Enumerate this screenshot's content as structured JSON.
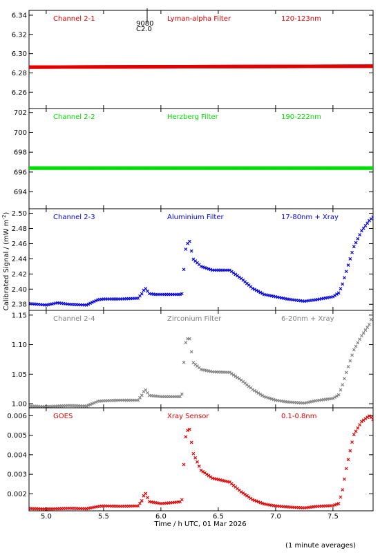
{
  "footer": {
    "note": "(1 minute averages)"
  },
  "axis": {
    "xlabel": "Time / h UTC, 01 Mar 2026",
    "ylabel": "Calibrated Signal / (mW m",
    "ylabel_sup": "-2",
    "ylabel_close": ")",
    "xlim": [
      4.85,
      7.85
    ],
    "xticks": [
      5.0,
      5.5,
      6.0,
      6.5,
      7.0,
      7.5
    ],
    "xtick_labels": [
      "5.0",
      "5.5",
      "6.0",
      "6.5",
      "7.0",
      "7.5"
    ]
  },
  "marker": {
    "x": 5.88,
    "label_top": "9080",
    "label_bottom": "C2.0"
  },
  "chart_data": [
    {
      "type": "scatter",
      "name": "Channel 2-1",
      "filter": "Lyman-alpha Filter",
      "range": "120-123nm",
      "color": "#e00000",
      "ylim": [
        6.243,
        6.345
      ],
      "yticks": [
        6.26,
        6.28,
        6.3,
        6.32,
        6.34
      ],
      "ytick_labels": [
        "6.26",
        "6.28",
        "6.30",
        "6.32",
        "6.34"
      ],
      "x": [
        4.85,
        7.85
      ],
      "y": [
        6.286,
        6.287
      ]
    },
    {
      "type": "scatter",
      "name": "Channel 2-2",
      "filter": "Herzberg Filter",
      "range": "190-222nm",
      "color": "#00dd00",
      "ylim": [
        692.3,
        702.4
      ],
      "yticks": [
        694,
        696,
        698,
        700,
        702
      ],
      "ytick_labels": [
        "694",
        "696",
        "698",
        "700",
        "702"
      ],
      "x": [
        4.85,
        7.85
      ],
      "y": [
        696.4,
        696.4
      ]
    },
    {
      "type": "scatter",
      "name": "Channel 2-3",
      "filter": "Aluminium Filter",
      "range": "17-80nm + Xray",
      "color": "#0000e0",
      "ylim": [
        2.372,
        2.506
      ],
      "yticks": [
        2.38,
        2.4,
        2.42,
        2.44,
        2.46,
        2.48,
        2.5
      ],
      "ytick_labels": [
        "2.38",
        "2.40",
        "2.42",
        "2.44",
        "2.46",
        "2.48",
        "2.50"
      ],
      "x": [
        4.85,
        5.0,
        5.1,
        5.2,
        5.35,
        5.45,
        5.5,
        5.65,
        5.8,
        5.84,
        5.86,
        5.9,
        5.95,
        6.0,
        6.1,
        6.18,
        6.19,
        6.2,
        6.22,
        6.25,
        6.28,
        6.35,
        6.45,
        6.6,
        6.7,
        6.8,
        6.9,
        7.0,
        7.1,
        7.25,
        7.35,
        7.5,
        7.55,
        7.58,
        7.62,
        7.68,
        7.75,
        7.82,
        7.85
      ],
      "y": [
        2.381,
        2.379,
        2.382,
        2.38,
        2.379,
        2.386,
        2.387,
        2.387,
        2.388,
        2.395,
        2.402,
        2.394,
        2.393,
        2.393,
        2.393,
        2.393,
        2.396,
        2.426,
        2.458,
        2.463,
        2.44,
        2.43,
        2.425,
        2.425,
        2.414,
        2.401,
        2.393,
        2.39,
        2.387,
        2.384,
        2.386,
        2.39,
        2.395,
        2.405,
        2.425,
        2.455,
        2.477,
        2.491,
        2.495
      ]
    },
    {
      "type": "scatter",
      "name": "Channel 2-4",
      "filter": "Zirconium Filter",
      "range": "6-20nm + Xray",
      "color": "#808080",
      "ylim": [
        0.993,
        1.158
      ],
      "yticks": [
        1.0,
        1.05,
        1.1,
        1.15
      ],
      "ytick_labels": [
        "1.00",
        "1.05",
        "1.10",
        "1.15"
      ],
      "x": [
        4.85,
        5.0,
        5.2,
        5.35,
        5.45,
        5.5,
        5.65,
        5.8,
        5.84,
        5.86,
        5.9,
        5.95,
        6.0,
        6.1,
        6.18,
        6.19,
        6.2,
        6.22,
        6.25,
        6.28,
        6.35,
        6.45,
        6.6,
        6.7,
        6.8,
        6.9,
        7.0,
        7.1,
        7.25,
        7.35,
        7.5,
        7.55,
        7.58,
        7.62,
        7.68,
        7.75,
        7.82,
        7.85
      ],
      "y": [
        0.996,
        0.995,
        0.997,
        0.996,
        1.004,
        1.005,
        1.006,
        1.006,
        1.016,
        1.025,
        1.014,
        1.013,
        1.012,
        1.012,
        1.012,
        1.025,
        1.07,
        1.11,
        1.11,
        1.07,
        1.058,
        1.054,
        1.053,
        1.04,
        1.024,
        1.012,
        1.006,
        1.003,
        1.001,
        1.005,
        1.009,
        1.015,
        1.03,
        1.055,
        1.09,
        1.115,
        1.135,
        1.152
      ]
    },
    {
      "type": "scatter",
      "name": "GOES",
      "filter": "Xray Sensor",
      "range": "0.1-0.8nm",
      "color": "#e00000",
      "ylim": [
        0.00113,
        0.0064
      ],
      "yticks": [
        0.002,
        0.003,
        0.004,
        0.005,
        0.006
      ],
      "ytick_labels": [
        "0.002",
        "0.003",
        "0.004",
        "0.005",
        "0.006"
      ],
      "x": [
        4.85,
        5.0,
        5.2,
        5.35,
        5.45,
        5.5,
        5.65,
        5.8,
        5.84,
        5.86,
        5.9,
        5.95,
        6.0,
        6.1,
        6.18,
        6.19,
        6.2,
        6.22,
        6.25,
        6.28,
        6.35,
        6.45,
        6.6,
        6.7,
        6.8,
        6.9,
        7.0,
        7.1,
        7.25,
        7.35,
        7.5,
        7.55,
        7.58,
        7.62,
        7.68,
        7.75,
        7.82,
        7.85
      ],
      "y": [
        0.00125,
        0.00122,
        0.00126,
        0.00124,
        0.00135,
        0.00138,
        0.00136,
        0.00138,
        0.0017,
        0.0021,
        0.0016,
        0.00155,
        0.0015,
        0.00155,
        0.0016,
        0.0019,
        0.0035,
        0.0052,
        0.0053,
        0.0041,
        0.0032,
        0.0028,
        0.0026,
        0.0021,
        0.0017,
        0.00148,
        0.00138,
        0.00133,
        0.00128,
        0.00135,
        0.0014,
        0.0015,
        0.0021,
        0.0034,
        0.005,
        0.0057,
        0.006,
        0.0058
      ]
    }
  ]
}
